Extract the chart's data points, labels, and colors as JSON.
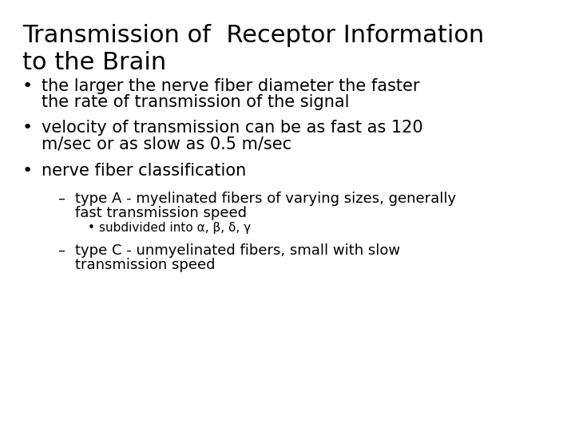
{
  "background_color": "#ffffff",
  "title_line1": "Transmission of  Receptor Information",
  "title_line2": "to the Brain",
  "title_fontsize": 22,
  "body_fontsize": 15,
  "sub_fontsize": 13,
  "subsub_fontsize": 11,
  "body_font": "DejaVu Sans",
  "text_color": "#000000",
  "bullet1_line1": "the larger the nerve fiber diameter the faster",
  "bullet1_line2": "the rate of transmission of the signal",
  "bullet2_line1": "velocity of transmission can be as fast as 120",
  "bullet2_line2": "m/sec or as slow as 0.5 m/sec",
  "bullet3": "nerve fiber classification",
  "sub1_line1": "type A - myelinated fibers of varying sizes, generally",
  "sub1_line2": "fast transmission speed",
  "subsub1": "subdivided into α, β, δ, γ",
  "sub2_line1": "type C - unmyelinated fibers, small with slow",
  "sub2_line2": "transmission speed"
}
